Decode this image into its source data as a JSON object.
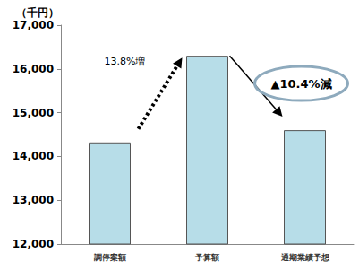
{
  "chart_data": {
    "type": "bar",
    "categories": [
      "調停案額",
      "予算額",
      "通期業績予想"
    ],
    "values": [
      14320,
      16300,
      14600
    ],
    "color": "#b7dde8",
    "ylabel": "（千円）",
    "ylim": [
      12000,
      17000
    ],
    "yticks": [
      {
        "value": 12000,
        "label": "12,000"
      },
      {
        "value": 13000,
        "label": "13,000"
      },
      {
        "value": 14000,
        "label": "14,000"
      },
      {
        "value": 15000,
        "label": "15,000"
      },
      {
        "value": 16000,
        "label": "16,000"
      },
      {
        "value": 17000,
        "label": "17,000"
      }
    ],
    "grid": false,
    "annotations": [
      "13.8%増",
      "▲10.4%減"
    ]
  }
}
